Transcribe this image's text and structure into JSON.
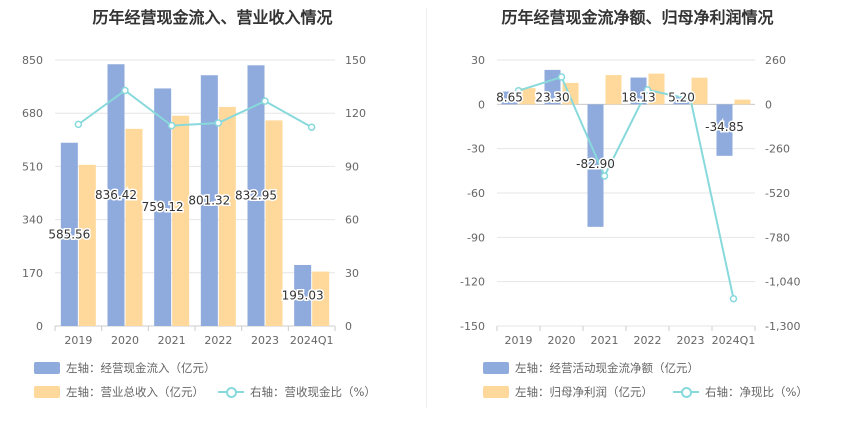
{
  "chart_data": [
    {
      "type": "bar",
      "title": "历年经营现金流入、营业收入情况",
      "categories": [
        "2019",
        "2020",
        "2021",
        "2022",
        "2023",
        "2024Q1"
      ],
      "y_left": {
        "ticks": [
          "0",
          "170",
          "340",
          "510",
          "680",
          "850"
        ],
        "lim": [
          0,
          850
        ]
      },
      "y_right": {
        "ticks": [
          "0",
          "30",
          "60",
          "90",
          "120",
          "150"
        ],
        "lim": [
          0,
          150
        ]
      },
      "grid": true,
      "legend_position": "bottom",
      "series": [
        {
          "name": "左轴：经营现金流入（亿元）",
          "kind": "bar",
          "axis": "left",
          "color": "#8faadc",
          "values": [
            585.56,
            836.42,
            759.12,
            801.32,
            832.95,
            195.03
          ],
          "labels": [
            "585.56",
            "836.42",
            "759.12",
            "801.32",
            "832.95",
            "195.03"
          ]
        },
        {
          "name": "左轴：营业总收入（亿元）",
          "kind": "bar",
          "axis": "left",
          "color": "#ffd99b",
          "values": [
            515,
            630,
            672,
            700,
            657,
            174
          ]
        },
        {
          "name": "右轴：营收现金比（%）",
          "kind": "line",
          "axis": "right",
          "color": "#88d9dc",
          "values": [
            113.7,
            132.8,
            113.0,
            114.5,
            126.8,
            112.1
          ]
        }
      ]
    },
    {
      "type": "bar",
      "title": "历年经营现金流净额、归母净利润情况",
      "categories": [
        "2019",
        "2020",
        "2021",
        "2022",
        "2023",
        "2024Q1"
      ],
      "y_left": {
        "ticks": [
          "-150",
          "-120",
          "-90",
          "-60",
          "-30",
          "0",
          "30"
        ],
        "lim": [
          -150,
          30
        ]
      },
      "y_right": {
        "ticks": [
          "-1,300",
          "-1,040",
          "-780",
          "-520",
          "-260",
          "0",
          "260"
        ],
        "lim": [
          -1300,
          260
        ]
      },
      "grid": true,
      "legend_position": "bottom",
      "series": [
        {
          "name": "左轴：经营活动现金流净额（亿元）",
          "kind": "bar",
          "axis": "left",
          "color": "#8faadc",
          "values": [
            8.65,
            23.3,
            -82.9,
            18.13,
            5.2,
            -34.85
          ],
          "labels": [
            "8.65",
            "23.30",
            "-82.90",
            "18.13",
            "5.20",
            "-34.85"
          ]
        },
        {
          "name": "左轴：归母净利润（亿元）",
          "kind": "bar",
          "axis": "left",
          "color": "#ffd99b",
          "values": [
            11.0,
            14.5,
            19.8,
            20.8,
            18.0,
            3.2
          ]
        },
        {
          "name": "右轴：净现比（%）",
          "kind": "line",
          "axis": "right",
          "color": "#88d9dc",
          "values": [
            80,
            160,
            -420,
            85,
            30,
            -1140
          ]
        }
      ]
    }
  ]
}
